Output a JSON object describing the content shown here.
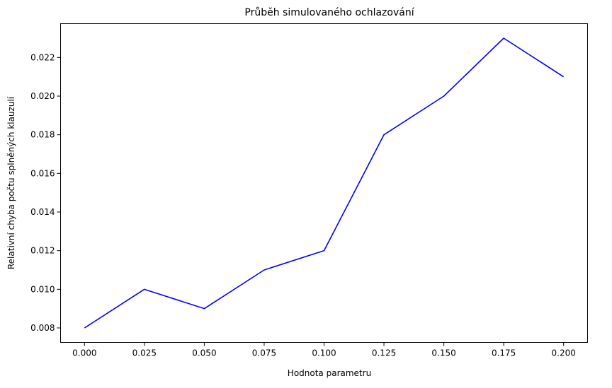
{
  "chart_data": {
    "type": "line",
    "title": "Průběh simulovaného ochlazování",
    "xlabel": "Hodnota parametru",
    "ylabel": "Relativní chyba počtu splněných klauzulí",
    "x": [
      0.0,
      0.025,
      0.05,
      0.075,
      0.1,
      0.125,
      0.15,
      0.175,
      0.2
    ],
    "series": [
      {
        "values": [
          0.008,
          0.01,
          0.009,
          0.011,
          0.012,
          0.018,
          0.02,
          0.023,
          0.021
        ],
        "color": "#0000ff"
      }
    ],
    "xlim": [
      -0.01,
      0.21
    ],
    "ylim": [
      0.00725,
      0.02375
    ],
    "xticks": [
      0.0,
      0.025,
      0.05,
      0.075,
      0.1,
      0.125,
      0.15,
      0.175,
      0.2
    ],
    "xtick_labels": [
      "0.000",
      "0.025",
      "0.050",
      "0.075",
      "0.100",
      "0.125",
      "0.150",
      "0.175",
      "0.200"
    ],
    "yticks": [
      0.008,
      0.01,
      0.012,
      0.014,
      0.016,
      0.018,
      0.02,
      0.022
    ],
    "ytick_labels": [
      "0.008",
      "0.010",
      "0.012",
      "0.014",
      "0.016",
      "0.018",
      "0.020",
      "0.022"
    ],
    "grid": false
  }
}
